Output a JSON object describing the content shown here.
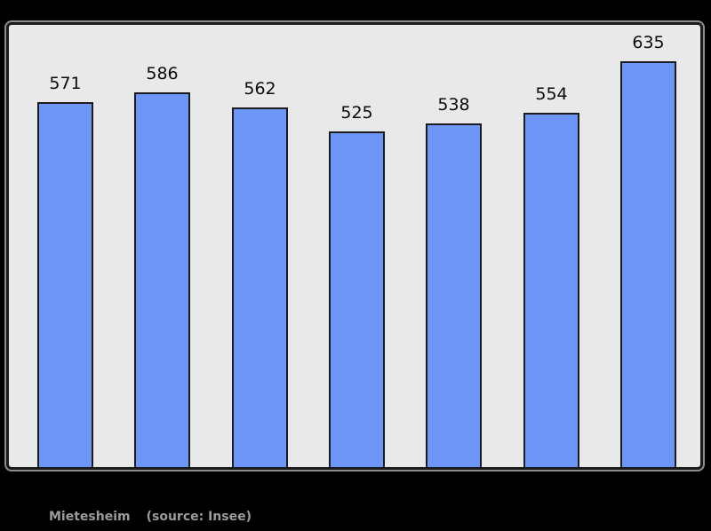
{
  "chart_data": {
    "type": "bar",
    "values": [
      571,
      586,
      562,
      525,
      538,
      554,
      635
    ],
    "value_labels": [
      "571",
      "586",
      "562",
      "525",
      "538",
      "554",
      "635"
    ],
    "title": "",
    "xlabel": "",
    "ylabel": "",
    "ylim": [
      0,
      692
    ],
    "baseline": 0,
    "grid": false,
    "legend": null,
    "colors": {
      "bar_fill": "#6e95f8",
      "bar_border": "#1c1c1c",
      "panel_background": "#e9e9e9",
      "panel_border": "#1b1b1b",
      "page_background": "#000000",
      "value_label_color": "#0a0a0a",
      "caption_color": "#9c9c9c"
    }
  },
  "caption": {
    "name": "Mietesheim",
    "source": "(source: Insee)"
  }
}
